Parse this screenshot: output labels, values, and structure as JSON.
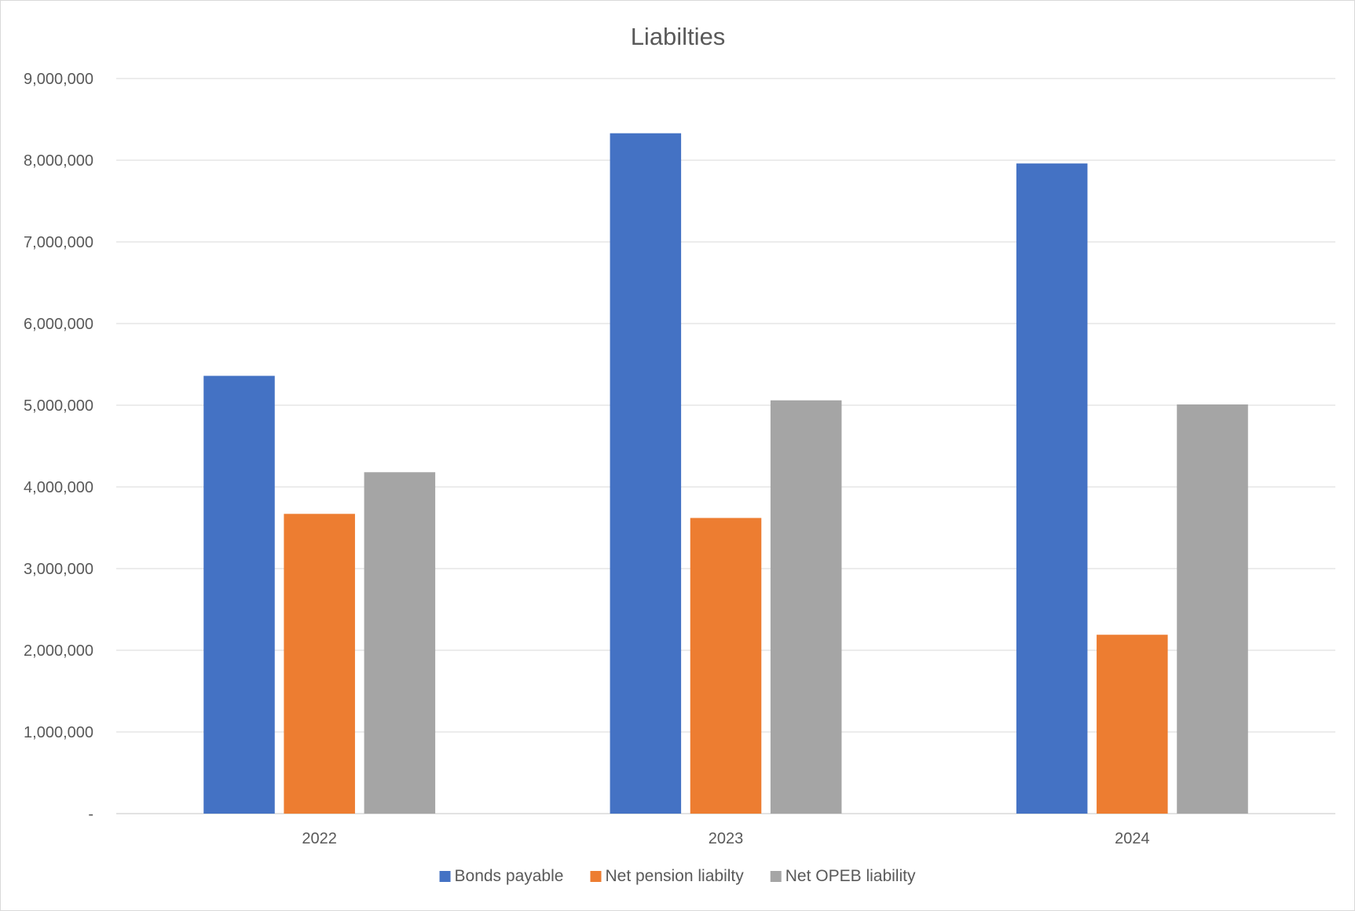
{
  "chart_data": {
    "type": "bar",
    "title": "Liabilties",
    "xlabel": "",
    "ylabel": "",
    "categories": [
      "2022",
      "2023",
      "2024"
    ],
    "series": [
      {
        "name": "Bonds payable",
        "values": [
          5360000,
          8330000,
          7960000
        ],
        "color": "#4472C4"
      },
      {
        "name": "Net pension liabilty",
        "values": [
          3670000,
          3620000,
          2190000
        ],
        "color": "#ED7D31"
      },
      {
        "name": "Net OPEB liability",
        "values": [
          4180000,
          5060000,
          5010000
        ],
        "color": "#A5A5A5"
      }
    ],
    "ylim": [
      0,
      9000000
    ],
    "yticks": [
      0,
      1000000,
      2000000,
      3000000,
      4000000,
      5000000,
      6000000,
      7000000,
      8000000,
      9000000
    ],
    "ytick_labels": [
      "-",
      "1,000,000",
      "2,000,000",
      "3,000,000",
      "4,000,000",
      "5,000,000",
      "6,000,000",
      "7,000,000",
      "8,000,000",
      "9,000,000"
    ],
    "grid": true,
    "legend_position": "bottom",
    "gridline_color": "#d9d9d9"
  }
}
